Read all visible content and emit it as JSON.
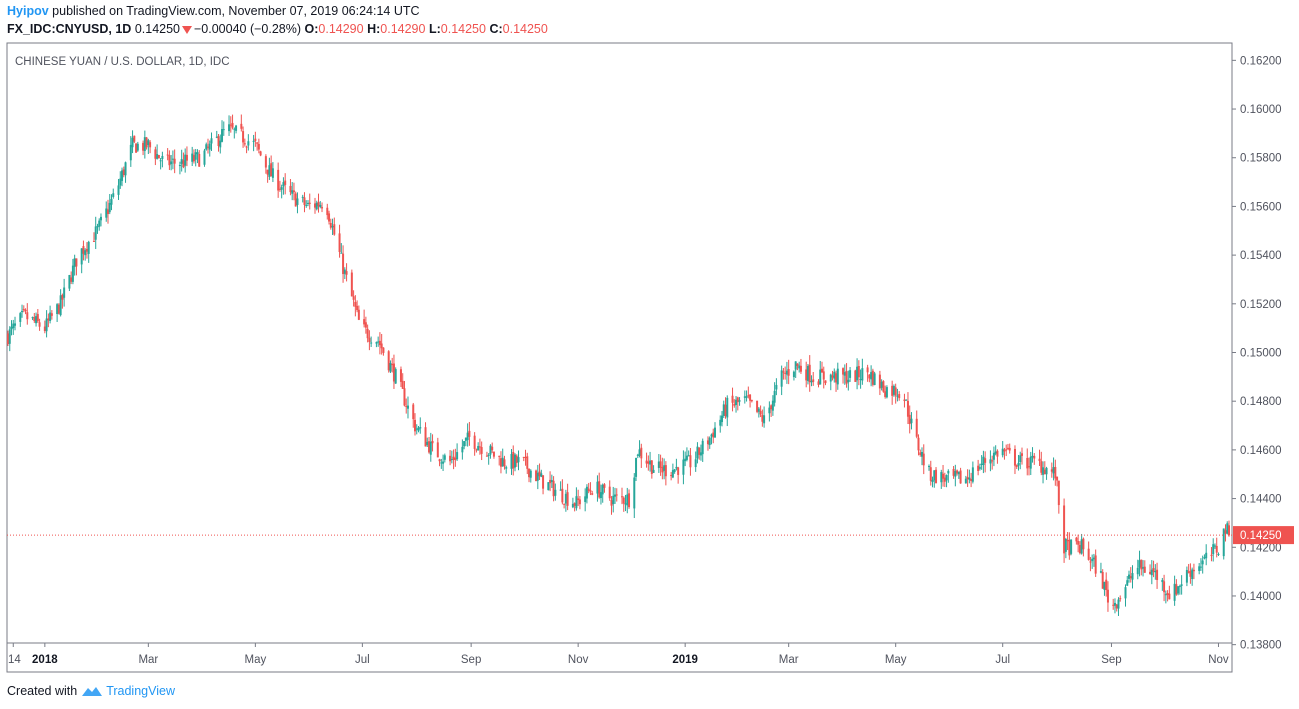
{
  "header": {
    "author": "Hyipov",
    "published_text": " published on TradingView.com, November 07, 2019 06:24:14 UTC",
    "symbol": "FX_IDC:CNYUSD, 1D",
    "last": "0.14250",
    "change": "−0.00040 (−0.28%)",
    "open_label": "O:",
    "open": "0.14290",
    "high_label": "H:",
    "high": "0.14290",
    "low_label": "L:",
    "low": "0.14250",
    "close_label": "C:",
    "close": "0.14250"
  },
  "footer": {
    "created_with": "Created with",
    "brand": "TradingView"
  },
  "colors": {
    "up": "#26a69a",
    "down": "#ef5350",
    "brand": "#2196f3",
    "price_line": "#ef5350"
  },
  "chart_data": {
    "type": "candlestick",
    "title": "CHINESE YUAN / U.S. DOLLAR, 1D, IDC",
    "ylim": [
      0.137,
      0.163
    ],
    "y_ticks": [
      "0.16200",
      "0.16000",
      "0.15800",
      "0.15600",
      "0.15400",
      "0.15200",
      "0.15000",
      "0.14800",
      "0.14600",
      "0.14400",
      "0.14200",
      "0.14000",
      "0.13800"
    ],
    "x_ticks": [
      {
        "label": "14",
        "date": "2017-12-14",
        "bold": false
      },
      {
        "label": "2018",
        "date": "2018-01-01",
        "bold": true
      },
      {
        "label": "Mar",
        "date": "2018-03-01",
        "bold": false
      },
      {
        "label": "May",
        "date": "2018-05-01",
        "bold": false
      },
      {
        "label": "Jul",
        "date": "2018-07-01",
        "bold": false
      },
      {
        "label": "Sep",
        "date": "2018-09-01",
        "bold": false
      },
      {
        "label": "Nov",
        "date": "2018-11-01",
        "bold": false
      },
      {
        "label": "2019",
        "date": "2019-01-01",
        "bold": true
      },
      {
        "label": "Mar",
        "date": "2019-03-01",
        "bold": false
      },
      {
        "label": "May",
        "date": "2019-05-01",
        "bold": false
      },
      {
        "label": "Jul",
        "date": "2019-07-01",
        "bold": false
      },
      {
        "label": "Sep",
        "date": "2019-09-01",
        "bold": false
      },
      {
        "label": "Nov",
        "date": "2019-11-01",
        "bold": false
      }
    ],
    "date_range": [
      "2017-12-11",
      "2019-11-07"
    ],
    "last_price": 0.1425,
    "last_price_label": "0.14250",
    "close_path": [
      [
        "2017-12-11",
        0.1507
      ],
      [
        "2017-12-20",
        0.1515
      ],
      [
        "2018-01-01",
        0.151
      ],
      [
        "2018-01-10",
        0.152
      ],
      [
        "2018-01-20",
        0.154
      ],
      [
        "2018-01-31",
        0.155
      ],
      [
        "2018-02-10",
        0.1565
      ],
      [
        "2018-02-20",
        0.1585
      ],
      [
        "2018-03-01",
        0.1585
      ],
      [
        "2018-03-10",
        0.1578
      ],
      [
        "2018-03-20",
        0.1578
      ],
      [
        "2018-03-31",
        0.158
      ],
      [
        "2018-04-15",
        0.1592
      ],
      [
        "2018-04-25",
        0.1588
      ],
      [
        "2018-05-01",
        0.1585
      ],
      [
        "2018-05-10",
        0.1573
      ],
      [
        "2018-05-20",
        0.1565
      ],
      [
        "2018-05-31",
        0.156
      ],
      [
        "2018-06-10",
        0.1562
      ],
      [
        "2018-06-20",
        0.1535
      ],
      [
        "2018-06-30",
        0.151
      ],
      [
        "2018-07-10",
        0.1505
      ],
      [
        "2018-07-20",
        0.149
      ],
      [
        "2018-07-31",
        0.147
      ],
      [
        "2018-08-10",
        0.146
      ],
      [
        "2018-08-20",
        0.1455
      ],
      [
        "2018-08-31",
        0.1465
      ],
      [
        "2018-09-10",
        0.146
      ],
      [
        "2018-09-20",
        0.1455
      ],
      [
        "2018-09-30",
        0.1455
      ],
      [
        "2018-10-10",
        0.1448
      ],
      [
        "2018-10-20",
        0.1443
      ],
      [
        "2018-10-31",
        0.1438
      ],
      [
        "2018-11-10",
        0.1445
      ],
      [
        "2018-11-20",
        0.144
      ],
      [
        "2018-11-30",
        0.144
      ],
      [
        "2018-12-05",
        0.146
      ],
      [
        "2018-12-15",
        0.1452
      ],
      [
        "2018-12-25",
        0.1452
      ],
      [
        "2019-01-05",
        0.1455
      ],
      [
        "2019-01-15",
        0.1465
      ],
      [
        "2019-01-25",
        0.1478
      ],
      [
        "2019-02-05",
        0.148
      ],
      [
        "2019-02-15",
        0.1472
      ],
      [
        "2019-02-25",
        0.149
      ],
      [
        "2019-03-05",
        0.1495
      ],
      [
        "2019-03-15",
        0.149
      ],
      [
        "2019-03-25",
        0.149
      ],
      [
        "2019-04-05",
        0.149
      ],
      [
        "2019-04-15",
        0.1492
      ],
      [
        "2019-04-25",
        0.1485
      ],
      [
        "2019-05-05",
        0.1484
      ],
      [
        "2019-05-12",
        0.1465
      ],
      [
        "2019-05-20",
        0.145
      ],
      [
        "2019-05-31",
        0.1448
      ],
      [
        "2019-06-10",
        0.1448
      ],
      [
        "2019-06-20",
        0.1455
      ],
      [
        "2019-06-30",
        0.146
      ],
      [
        "2019-07-10",
        0.1455
      ],
      [
        "2019-07-20",
        0.1455
      ],
      [
        "2019-07-31",
        0.145
      ],
      [
        "2019-08-05",
        0.142
      ],
      [
        "2019-08-15",
        0.142
      ],
      [
        "2019-08-25",
        0.141
      ],
      [
        "2019-09-01",
        0.1395
      ],
      [
        "2019-09-10",
        0.1405
      ],
      [
        "2019-09-15",
        0.1412
      ],
      [
        "2019-09-25",
        0.141
      ],
      [
        "2019-10-05",
        0.14
      ],
      [
        "2019-10-15",
        0.141
      ],
      [
        "2019-10-25",
        0.1415
      ],
      [
        "2019-11-01",
        0.142
      ],
      [
        "2019-11-05",
        0.1428
      ],
      [
        "2019-11-07",
        0.1425
      ]
    ]
  }
}
